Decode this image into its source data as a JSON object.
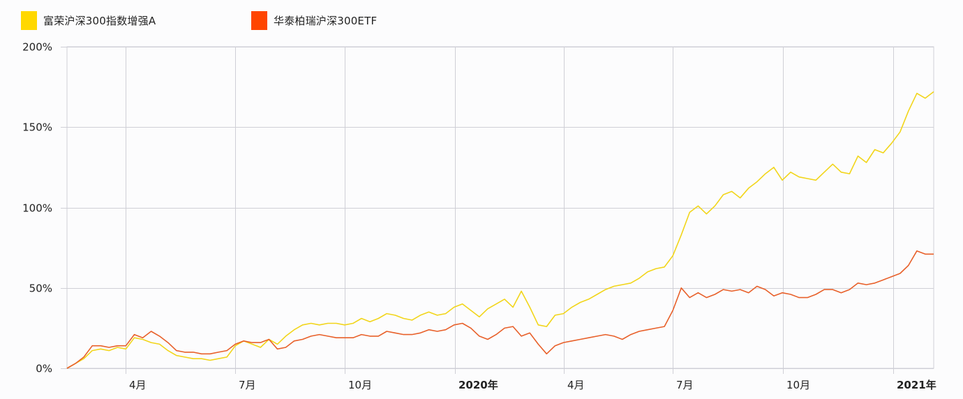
{
  "legend": {
    "items": [
      {
        "label": "富荣沪深300指数增强A",
        "color": "#FFD800"
      },
      {
        "label": "华泰柏瑞沪深300ETF",
        "color": "#FF4500"
      }
    ]
  },
  "chart_data": {
    "type": "line",
    "title": "",
    "xlabel": "",
    "ylabel": "",
    "ylim": [
      0,
      200
    ],
    "y_ticks": [
      "0%",
      "50%",
      "100%",
      "150%",
      "200%"
    ],
    "x_ticks": [
      {
        "label": "4月",
        "bold": false
      },
      {
        "label": "7月",
        "bold": false
      },
      {
        "label": "10月",
        "bold": false
      },
      {
        "label": "2020年",
        "bold": true
      },
      {
        "label": "4月",
        "bold": false
      },
      {
        "label": "7月",
        "bold": false
      },
      {
        "label": "10月",
        "bold": false
      },
      {
        "label": "2021年",
        "bold": true
      }
    ],
    "x_range": [
      "2019-02",
      "2021-02"
    ],
    "grid": true,
    "legend_position": "top-left",
    "x": [
      "2019-02-14",
      "2019-02-22",
      "2019-03-01",
      "2019-03-08",
      "2019-03-15",
      "2019-03-22",
      "2019-03-29",
      "2019-04-05",
      "2019-04-12",
      "2019-04-19",
      "2019-04-26",
      "2019-05-03",
      "2019-05-10",
      "2019-05-17",
      "2019-05-24",
      "2019-05-31",
      "2019-06-07",
      "2019-06-14",
      "2019-06-21",
      "2019-06-28",
      "2019-07-05",
      "2019-07-12",
      "2019-07-19",
      "2019-07-26",
      "2019-08-02",
      "2019-08-09",
      "2019-08-16",
      "2019-08-23",
      "2019-08-30",
      "2019-09-06",
      "2019-09-13",
      "2019-09-20",
      "2019-09-27",
      "2019-10-04",
      "2019-10-11",
      "2019-10-18",
      "2019-10-25",
      "2019-11-01",
      "2019-11-08",
      "2019-11-15",
      "2019-11-22",
      "2019-11-29",
      "2019-12-06",
      "2019-12-13",
      "2019-12-20",
      "2019-12-27",
      "2020-01-03",
      "2020-01-10",
      "2020-01-17",
      "2020-01-24",
      "2020-01-31",
      "2020-02-07",
      "2020-02-14",
      "2020-02-21",
      "2020-02-28",
      "2020-03-06",
      "2020-03-13",
      "2020-03-20",
      "2020-03-27",
      "2020-04-03",
      "2020-04-10",
      "2020-04-17",
      "2020-04-24",
      "2020-05-01",
      "2020-05-08",
      "2020-05-15",
      "2020-05-22",
      "2020-05-29",
      "2020-06-05",
      "2020-06-12",
      "2020-06-19",
      "2020-06-26",
      "2020-07-03",
      "2020-07-10",
      "2020-07-17",
      "2020-07-24",
      "2020-07-31",
      "2020-08-07",
      "2020-08-14",
      "2020-08-21",
      "2020-08-28",
      "2020-09-04",
      "2020-09-11",
      "2020-09-18",
      "2020-09-25",
      "2020-10-02",
      "2020-10-09",
      "2020-10-16",
      "2020-10-23",
      "2020-10-30",
      "2020-11-06",
      "2020-11-13",
      "2020-11-20",
      "2020-11-27",
      "2020-12-04",
      "2020-12-11",
      "2020-12-18",
      "2020-12-25",
      "2021-01-01",
      "2021-01-08",
      "2021-01-15",
      "2021-01-22",
      "2021-01-29",
      "2021-02-03"
    ],
    "series": [
      {
        "name": "富荣沪深300指数增强A",
        "color": "#F2D51A",
        "values": [
          0,
          3,
          6,
          11,
          12,
          11,
          13,
          12,
          19,
          18,
          16,
          15,
          11,
          8,
          7,
          6,
          6,
          5,
          6,
          7,
          14,
          17,
          15,
          13,
          18,
          15,
          20,
          24,
          27,
          28,
          27,
          28,
          28,
          27,
          28,
          31,
          29,
          31,
          34,
          33,
          31,
          30,
          33,
          35,
          33,
          34,
          38,
          40,
          36,
          32,
          37,
          40,
          43,
          38,
          48,
          38,
          27,
          26,
          33,
          34,
          38,
          41,
          43,
          46,
          49,
          51,
          52,
          53,
          56,
          60,
          62,
          63,
          70,
          83,
          97,
          101,
          96,
          101,
          108,
          110,
          106,
          112,
          116,
          121,
          125,
          117,
          122,
          119,
          118,
          117,
          122,
          127,
          122,
          121,
          132,
          128,
          136,
          134,
          140,
          147,
          160,
          171,
          168,
          172
        ]
      },
      {
        "name": "华泰柏瑞沪深300ETF",
        "color": "#E8602A",
        "values": [
          0,
          3,
          7,
          14,
          14,
          13,
          14,
          14,
          21,
          19,
          23,
          20,
          16,
          11,
          10,
          10,
          9,
          9,
          10,
          11,
          15,
          17,
          16,
          16,
          18,
          12,
          13,
          17,
          18,
          20,
          21,
          20,
          19,
          19,
          19,
          21,
          20,
          20,
          23,
          22,
          21,
          21,
          22,
          24,
          23,
          24,
          27,
          28,
          25,
          20,
          18,
          21,
          25,
          26,
          20,
          22,
          15,
          9,
          14,
          16,
          17,
          18,
          19,
          20,
          21,
          20,
          18,
          21,
          23,
          24,
          25,
          26,
          36,
          50,
          44,
          47,
          44,
          46,
          49,
          48,
          49,
          47,
          51,
          49,
          45,
          47,
          46,
          44,
          44,
          46,
          49,
          49,
          47,
          49,
          53,
          52,
          53,
          55,
          57,
          59,
          64,
          73,
          71,
          71
        ]
      }
    ]
  }
}
